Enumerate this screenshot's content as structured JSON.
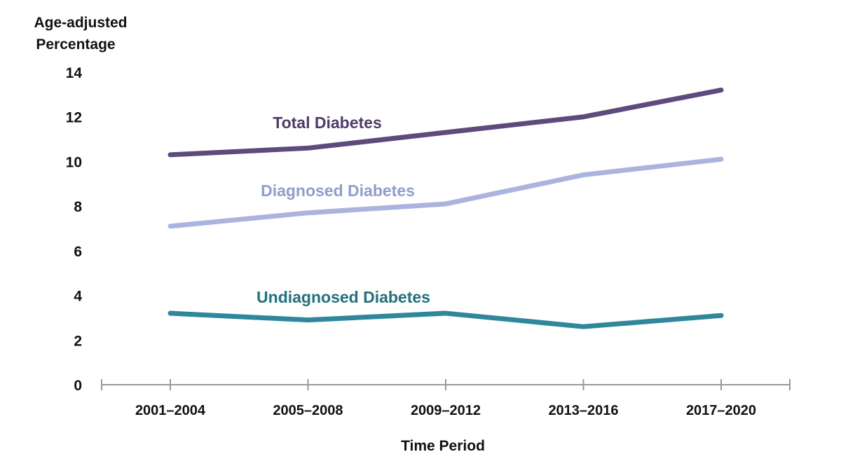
{
  "chart_data": {
    "type": "line",
    "title": "",
    "xlabel": "Time Period",
    "ylabel": "Age-adjusted Percentage",
    "ylabel_lines": [
      "Age-adjusted",
      "Percentage"
    ],
    "categories": [
      "2001–2004",
      "2005–2008",
      "2009–2012",
      "2013–2016",
      "2017–2020"
    ],
    "yticks": [
      0,
      2,
      4,
      6,
      8,
      10,
      12,
      14
    ],
    "ylim": [
      0,
      14
    ],
    "grid": false,
    "legend": "inline labels",
    "series": [
      {
        "name": "Total Diabetes",
        "values": [
          10.3,
          10.6,
          11.3,
          12.0,
          13.2
        ],
        "color": "#5e4b7c",
        "label_color": "#4d3d6b"
      },
      {
        "name": "Diagnosed Diabetes",
        "values": [
          7.1,
          7.7,
          8.1,
          9.4,
          10.1
        ],
        "color": "#aab4de",
        "label_color": "#8f9ecf"
      },
      {
        "name": "Undiagnosed Diabetes",
        "values": [
          3.2,
          2.9,
          3.2,
          2.6,
          3.1
        ],
        "color": "#2f879c",
        "label_color": "#24707f"
      }
    ]
  }
}
